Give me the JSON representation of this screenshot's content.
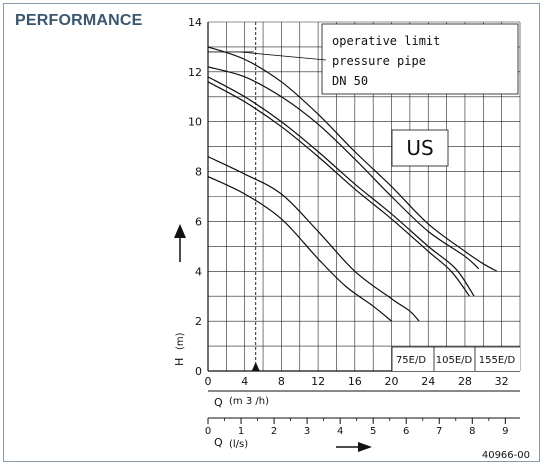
{
  "header": {
    "title": "PERFORMANCE"
  },
  "figure_code": "40966-00",
  "colors": {
    "title": "#3b5670",
    "lines": "#111111",
    "grid": "#222222",
    "frame": "#8a9aa8"
  },
  "chart_data": {
    "type": "line",
    "y_axis": {
      "label": "H",
      "unit": "(m)",
      "ylim": [
        0,
        14
      ],
      "ticks": [
        0,
        2,
        4,
        6,
        8,
        10,
        12,
        14
      ]
    },
    "x_axis_primary": {
      "label": "Q",
      "unit": "(m 3 /h)",
      "xlim": [
        0,
        34
      ],
      "ticks": [
        0,
        4,
        8,
        12,
        16,
        20,
        24,
        28,
        32
      ]
    },
    "x_axis_secondary": {
      "label": "Q",
      "unit": "(l/s)",
      "ticks": [
        0,
        1,
        2,
        3,
        4,
        5,
        6,
        7,
        8,
        9
      ]
    },
    "grid": true,
    "annotations": {
      "limit_line1": "operative limit",
      "limit_line2": "pressure pipe",
      "limit_line3": "DN 50",
      "region": "US"
    },
    "limit_marker_q": 5.2,
    "limit_line_y": 12.8,
    "series_labels": [
      "75E/D",
      "105E/D",
      "155E/D"
    ],
    "series": [
      {
        "name": "155E/D",
        "points": [
          [
            0,
            13.0
          ],
          [
            4,
            12.5
          ],
          [
            8,
            11.6
          ],
          [
            12,
            10.3
          ],
          [
            16,
            8.8
          ],
          [
            20,
            7.4
          ],
          [
            24,
            5.9
          ],
          [
            28,
            4.8
          ],
          [
            30,
            4.3
          ],
          [
            31.5,
            4.0
          ]
        ]
      },
      {
        "name": "155E/D",
        "points": [
          [
            0,
            12.2
          ],
          [
            4,
            11.8
          ],
          [
            8,
            11.0
          ],
          [
            12,
            9.9
          ],
          [
            16,
            8.5
          ],
          [
            20,
            7.0
          ],
          [
            24,
            5.6
          ],
          [
            28,
            4.6
          ],
          [
            29.5,
            4.1
          ]
        ]
      },
      {
        "name": "105E/D",
        "points": [
          [
            0,
            11.8
          ],
          [
            4,
            11.0
          ],
          [
            8,
            10.0
          ],
          [
            12,
            8.8
          ],
          [
            16,
            7.5
          ],
          [
            20,
            6.3
          ],
          [
            24,
            5.0
          ],
          [
            27,
            4.1
          ],
          [
            29,
            3.0
          ]
        ]
      },
      {
        "name": "105E/D",
        "points": [
          [
            0,
            11.6
          ],
          [
            4,
            10.8
          ],
          [
            8,
            9.8
          ],
          [
            12,
            8.6
          ],
          [
            16,
            7.3
          ],
          [
            20,
            6.1
          ],
          [
            24,
            4.8
          ],
          [
            26.5,
            4.0
          ],
          [
            28.5,
            3.0
          ]
        ]
      },
      {
        "name": "75E/D",
        "points": [
          [
            0,
            8.6
          ],
          [
            4,
            7.9
          ],
          [
            8,
            7.1
          ],
          [
            12,
            5.6
          ],
          [
            16,
            4.0
          ],
          [
            20,
            2.9
          ],
          [
            22,
            2.4
          ],
          [
            23,
            2.0
          ]
        ]
      },
      {
        "name": "75E/D",
        "points": [
          [
            0,
            7.8
          ],
          [
            4,
            7.1
          ],
          [
            8,
            6.1
          ],
          [
            12,
            4.5
          ],
          [
            15,
            3.4
          ],
          [
            18,
            2.6
          ],
          [
            20,
            2.0
          ]
        ]
      }
    ]
  }
}
